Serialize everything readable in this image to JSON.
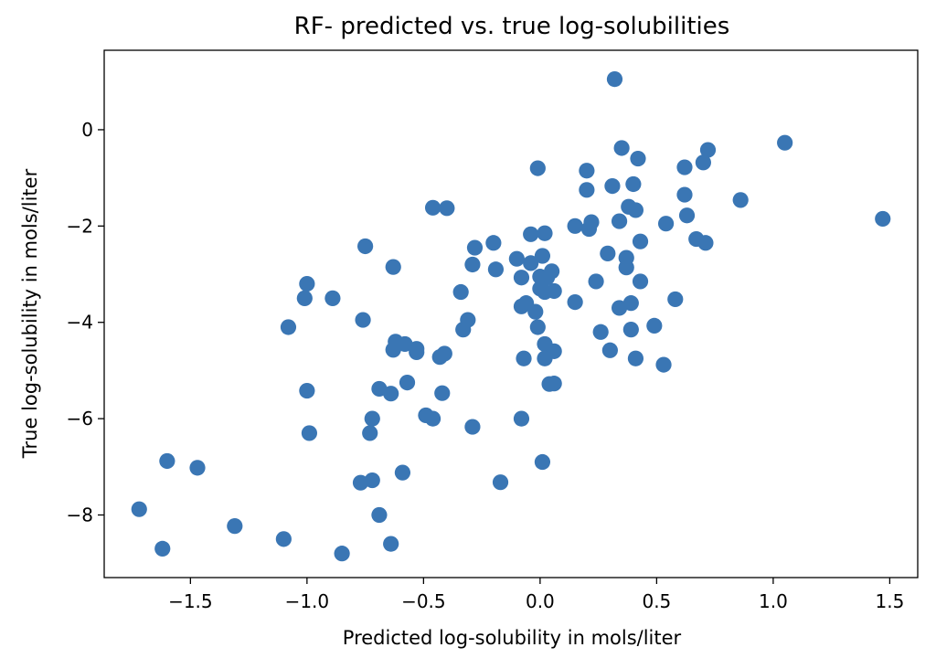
{
  "chart_data": {
    "type": "scatter",
    "title": "RF- predicted vs. true log-solubilities",
    "xlabel": "Predicted log-solubility in mols/liter",
    "ylabel": "True log-solubility in mols/liter",
    "xlim": [
      -1.87,
      1.62
    ],
    "ylim": [
      -9.3,
      1.65
    ],
    "xticks": [
      -1.5,
      -1.0,
      -0.5,
      0.0,
      0.5,
      1.0,
      1.5
    ],
    "xtick_labels": [
      "−1.5",
      "−1.0",
      "−0.5",
      "0.0",
      "0.5",
      "1.0",
      "1.5"
    ],
    "yticks": [
      0,
      -2,
      -4,
      -6,
      -8
    ],
    "ytick_labels": [
      "0",
      "−2",
      "−4",
      "−6",
      "−8"
    ],
    "grid": false,
    "marker_color": "#3a76b4",
    "series": [
      {
        "points": [
          [
            0.32,
            1.05
          ],
          [
            0.35,
            -0.38
          ],
          [
            0.42,
            -0.6
          ],
          [
            0.72,
            -0.42
          ],
          [
            1.05,
            -0.27
          ],
          [
            -0.01,
            -0.8
          ],
          [
            0.2,
            -0.85
          ],
          [
            0.62,
            -0.78
          ],
          [
            0.7,
            -0.68
          ],
          [
            0.2,
            -1.25
          ],
          [
            0.31,
            -1.17
          ],
          [
            0.4,
            -1.13
          ],
          [
            0.62,
            -1.35
          ],
          [
            0.86,
            -1.46
          ],
          [
            0.38,
            -1.6
          ],
          [
            0.41,
            -1.67
          ],
          [
            -0.46,
            -1.62
          ],
          [
            -0.4,
            -1.63
          ],
          [
            0.63,
            -1.78
          ],
          [
            1.47,
            -1.85
          ],
          [
            0.34,
            -1.9
          ],
          [
            0.22,
            -1.92
          ],
          [
            0.15,
            -2.0
          ],
          [
            0.21,
            -2.06
          ],
          [
            0.54,
            -1.95
          ],
          [
            -0.04,
            -2.17
          ],
          [
            0.02,
            -2.15
          ],
          [
            0.67,
            -2.27
          ],
          [
            0.71,
            -2.35
          ],
          [
            0.43,
            -2.32
          ],
          [
            -0.2,
            -2.35
          ],
          [
            -0.28,
            -2.45
          ],
          [
            -0.75,
            -2.42
          ],
          [
            0.29,
            -2.57
          ],
          [
            0.37,
            -2.66
          ],
          [
            -0.1,
            -2.68
          ],
          [
            0.01,
            -2.62
          ],
          [
            -0.04,
            -2.77
          ],
          [
            -0.29,
            -2.8
          ],
          [
            -0.19,
            -2.9
          ],
          [
            -0.63,
            -2.85
          ],
          [
            0.37,
            -2.86
          ],
          [
            0.05,
            -2.94
          ],
          [
            -0.08,
            -3.07
          ],
          [
            0.0,
            -3.05
          ],
          [
            0.03,
            -3.07
          ],
          [
            0.43,
            -3.15
          ],
          [
            0.24,
            -3.15
          ],
          [
            -1.0,
            -3.2
          ],
          [
            0.0,
            -3.3
          ],
          [
            0.02,
            -3.37
          ],
          [
            0.06,
            -3.35
          ],
          [
            -0.34,
            -3.37
          ],
          [
            -1.01,
            -3.5
          ],
          [
            -0.89,
            -3.5
          ],
          [
            -0.06,
            -3.6
          ],
          [
            0.15,
            -3.58
          ],
          [
            0.39,
            -3.6
          ],
          [
            0.58,
            -3.52
          ],
          [
            -0.08,
            -3.67
          ],
          [
            0.34,
            -3.7
          ],
          [
            -0.02,
            -3.78
          ],
          [
            -0.76,
            -3.95
          ],
          [
            -0.31,
            -3.95
          ],
          [
            -1.08,
            -4.1
          ],
          [
            -0.33,
            -4.15
          ],
          [
            -0.01,
            -4.1
          ],
          [
            0.39,
            -4.15
          ],
          [
            0.26,
            -4.2
          ],
          [
            0.49,
            -4.07
          ],
          [
            -0.62,
            -4.4
          ],
          [
            -0.58,
            -4.45
          ],
          [
            0.02,
            -4.45
          ],
          [
            -0.63,
            -4.57
          ],
          [
            -0.53,
            -4.55
          ],
          [
            -0.53,
            -4.62
          ],
          [
            0.3,
            -4.58
          ],
          [
            0.06,
            -4.6
          ],
          [
            -0.41,
            -4.65
          ],
          [
            -0.43,
            -4.72
          ],
          [
            -0.07,
            -4.75
          ],
          [
            0.02,
            -4.75
          ],
          [
            0.41,
            -4.75
          ],
          [
            0.53,
            -4.88
          ],
          [
            -0.57,
            -5.25
          ],
          [
            0.04,
            -5.28
          ],
          [
            0.06,
            -5.27
          ],
          [
            -0.69,
            -5.38
          ],
          [
            -0.64,
            -5.48
          ],
          [
            -0.42,
            -5.47
          ],
          [
            -1.0,
            -5.42
          ],
          [
            -0.49,
            -5.93
          ],
          [
            -0.46,
            -6.0
          ],
          [
            -0.72,
            -6.0
          ],
          [
            -0.08,
            -6.0
          ],
          [
            -0.29,
            -6.17
          ],
          [
            -0.99,
            -6.3
          ],
          [
            -0.73,
            -6.3
          ],
          [
            -1.6,
            -6.88
          ],
          [
            -1.47,
            -7.02
          ],
          [
            0.01,
            -6.9
          ],
          [
            -0.59,
            -7.12
          ],
          [
            -0.72,
            -7.28
          ],
          [
            -0.77,
            -7.33
          ],
          [
            -0.17,
            -7.32
          ],
          [
            -0.69,
            -8.0
          ],
          [
            -1.72,
            -7.88
          ],
          [
            -1.31,
            -8.23
          ],
          [
            -1.1,
            -8.5
          ],
          [
            -0.64,
            -8.6
          ],
          [
            -1.62,
            -8.7
          ],
          [
            -0.85,
            -8.8
          ]
        ]
      }
    ]
  }
}
